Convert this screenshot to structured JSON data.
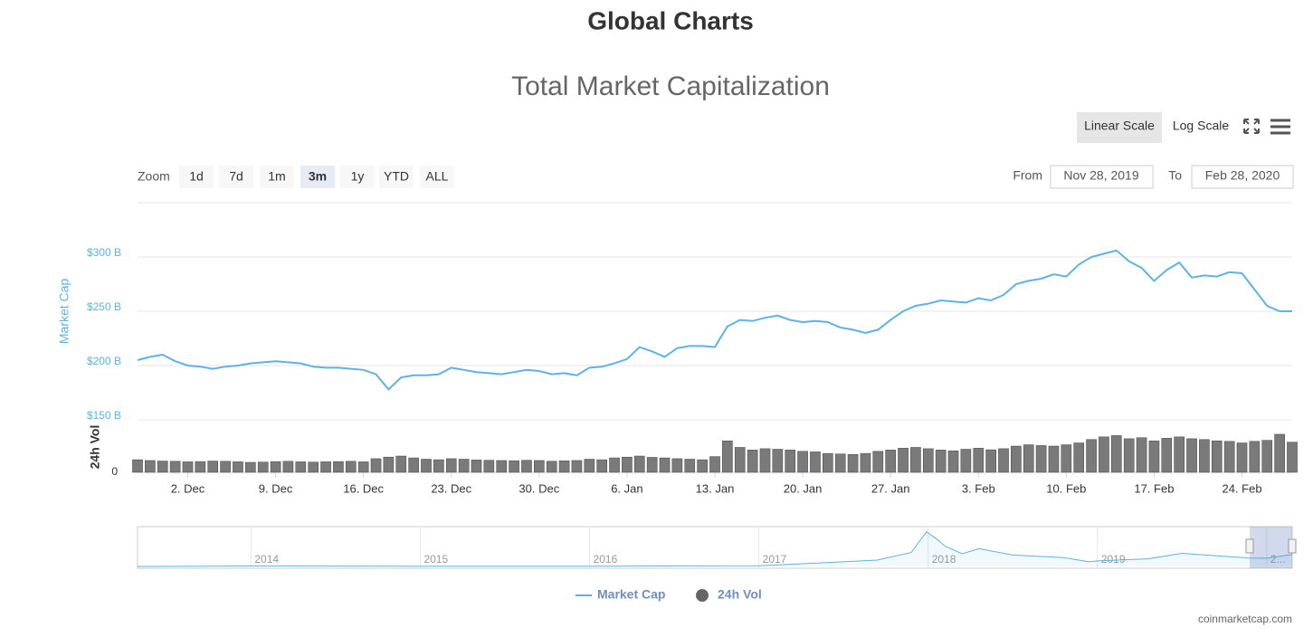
{
  "header": {
    "title": "Global Charts"
  },
  "chart_data": {
    "type": "line",
    "title": "Total Market Capitalization",
    "scale_buttons": [
      "Linear Scale",
      "Log Scale"
    ],
    "zoom_label": "Zoom",
    "zoom_buttons": [
      "1d",
      "7d",
      "1m",
      "3m",
      "1y",
      "YTD",
      "ALL"
    ],
    "zoom_active": 3,
    "from_label": "From",
    "from": "Nov 28, 2019",
    "to_label": "To",
    "to": "Feb 28, 2020",
    "categories": [
      null,
      null,
      null,
      null,
      "2. Dec",
      null,
      null,
      null,
      null,
      null,
      null,
      "9. Dec",
      null,
      null,
      null,
      null,
      null,
      null,
      "16. Dec",
      null,
      null,
      null,
      null,
      null,
      null,
      "23. Dec",
      null,
      null,
      null,
      null,
      null,
      null,
      "30. Dec",
      null,
      null,
      null,
      null,
      null,
      null,
      "6. Jan",
      null,
      null,
      null,
      null,
      null,
      null,
      "13. Jan",
      null,
      null,
      null,
      null,
      null,
      null,
      "20. Jan",
      null,
      null,
      null,
      null,
      null,
      null,
      "27. Jan",
      null,
      null,
      null,
      null,
      null,
      null,
      "3. Feb",
      null,
      null,
      null,
      null,
      null,
      null,
      "10. Feb",
      null,
      null,
      null,
      null,
      null,
      null,
      "17. Feb",
      null,
      null,
      null,
      null,
      null,
      null,
      "24. Feb",
      null,
      null,
      null,
      null
    ],
    "series": [
      {
        "name": "Market Cap",
        "color": "#5cb3e4",
        "values": [
          205,
          208,
          210,
          204,
          200,
          199,
          197,
          199,
          200,
          202,
          203,
          204,
          203,
          202,
          199,
          198,
          198,
          197,
          196,
          192,
          178,
          189,
          191,
          191,
          192,
          198,
          196,
          194,
          193,
          192,
          194,
          196,
          195,
          192,
          193,
          191,
          198,
          199,
          202,
          206,
          217,
          213,
          208,
          216,
          218,
          218,
          217,
          236,
          242,
          241,
          244,
          246,
          242,
          240,
          241,
          240,
          235,
          233,
          230,
          233,
          242,
          250,
          255,
          257,
          260,
          259,
          258,
          262,
          260,
          265,
          275,
          278,
          280,
          284,
          282,
          293,
          300,
          303,
          306,
          296,
          290,
          278,
          288,
          295,
          281,
          283,
          282,
          286,
          285,
          270,
          255,
          250,
          250
        ]
      },
      {
        "name": "24h Vol",
        "type": "bar",
        "axis": "y2",
        "color": "#7a7a7a",
        "values": [
          48,
          45,
          43,
          42,
          40,
          41,
          43,
          42,
          40,
          38,
          39,
          41,
          42,
          40,
          39,
          40,
          41,
          42,
          40,
          52,
          58,
          62,
          55,
          50,
          48,
          52,
          50,
          47,
          46,
          45,
          44,
          46,
          45,
          42,
          44,
          45,
          50,
          48,
          55,
          58,
          62,
          57,
          55,
          52,
          50,
          48,
          60,
          120,
          95,
          85,
          90,
          88,
          85,
          80,
          78,
          72,
          70,
          68,
          72,
          80,
          85,
          92,
          95,
          90,
          85,
          82,
          88,
          92,
          86,
          90,
          100,
          105,
          102,
          100,
          105,
          112,
          125,
          135,
          140,
          128,
          132,
          120,
          130,
          135,
          128,
          125,
          120,
          118,
          112,
          118,
          122,
          145,
          115
        ]
      }
    ],
    "ylabel": "Market Cap",
    "ylim": [
      150,
      350
    ],
    "yticks": [
      {
        "value": 150,
        "label": "$150 B"
      },
      {
        "value": 200,
        "label": "$200 B"
      },
      {
        "value": 250,
        "label": "$250 B"
      },
      {
        "value": 300,
        "label": "$300 B"
      }
    ],
    "y2label": "24h Vol",
    "y2lim": [
      0,
      200
    ],
    "y2ticks": [
      0
    ],
    "grid": true,
    "navigator": {
      "x": [
        2013.33,
        2014,
        2015,
        2016,
        2017,
        2017.4,
        2017.7,
        2017.9,
        2017.99,
        2018.05,
        2018.1,
        2018.2,
        2018.3,
        2018.5,
        2018.8,
        2018.95,
        2019,
        2019.3,
        2019.5,
        2019.6,
        2019.9,
        2020,
        2020.15
      ],
      "values": [
        1,
        10,
        5,
        7,
        18,
        90,
        150,
        330,
        820,
        650,
        480,
        300,
        420,
        270,
        210,
        110,
        130,
        180,
        310,
        280,
        200,
        195,
        280
      ],
      "xlim": [
        2013.33,
        2020.15
      ],
      "ylim": [
        0,
        900
      ],
      "xticks": [
        2014,
        2015,
        2016,
        2017,
        2018,
        2019,
        {
          "value": 2020,
          "label": "2..."
        }
      ]
    },
    "credit": "coinmarketcap.com"
  }
}
